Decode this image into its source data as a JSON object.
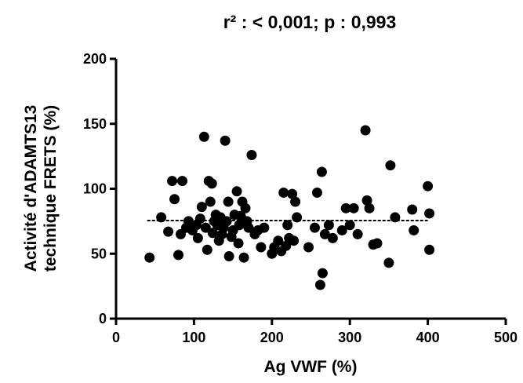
{
  "chart_data": {
    "type": "scatter",
    "title": "r² : < 0,001; p : 0,993",
    "xlabel": "Ag VWF (%)",
    "ylabel": [
      "Activité d'ADAMTS13",
      "technique FRETS (%)"
    ],
    "xlim": [
      0,
      500
    ],
    "ylim": [
      0,
      200
    ],
    "x_ticks": [
      "0",
      "100",
      "200",
      "300",
      "400",
      "500"
    ],
    "y_ticks": [
      "0",
      "50",
      "100",
      "150",
      "200"
    ],
    "grid": false,
    "regression_line": {
      "x": [
        40,
        400
      ],
      "y": [
        75.5,
        75.5
      ],
      "style": "dashed"
    },
    "points": [
      {
        "x": 43,
        "y": 47
      },
      {
        "x": 58,
        "y": 78
      },
      {
        "x": 67,
        "y": 67
      },
      {
        "x": 72,
        "y": 106
      },
      {
        "x": 75,
        "y": 92
      },
      {
        "x": 80,
        "y": 49
      },
      {
        "x": 83,
        "y": 65
      },
      {
        "x": 85,
        "y": 106
      },
      {
        "x": 90,
        "y": 70
      },
      {
        "x": 93,
        "y": 75
      },
      {
        "x": 98,
        "y": 68
      },
      {
        "x": 103,
        "y": 72
      },
      {
        "x": 105,
        "y": 62
      },
      {
        "x": 108,
        "y": 77
      },
      {
        "x": 110,
        "y": 86
      },
      {
        "x": 113,
        "y": 140
      },
      {
        "x": 115,
        "y": 70
      },
      {
        "x": 117,
        "y": 53
      },
      {
        "x": 119,
        "y": 106
      },
      {
        "x": 121,
        "y": 90
      },
      {
        "x": 123,
        "y": 104
      },
      {
        "x": 124,
        "y": 66
      },
      {
        "x": 126,
        "y": 75
      },
      {
        "x": 128,
        "y": 80
      },
      {
        "x": 130,
        "y": 72
      },
      {
        "x": 132,
        "y": 60
      },
      {
        "x": 134,
        "y": 78
      },
      {
        "x": 136,
        "y": 65
      },
      {
        "x": 138,
        "y": 70
      },
      {
        "x": 140,
        "y": 137
      },
      {
        "x": 142,
        "y": 75
      },
      {
        "x": 144,
        "y": 90
      },
      {
        "x": 145,
        "y": 48
      },
      {
        "x": 148,
        "y": 63
      },
      {
        "x": 150,
        "y": 68
      },
      {
        "x": 152,
        "y": 80
      },
      {
        "x": 155,
        "y": 98
      },
      {
        "x": 157,
        "y": 58
      },
      {
        "x": 158,
        "y": 72
      },
      {
        "x": 160,
        "y": 79
      },
      {
        "x": 162,
        "y": 90
      },
      {
        "x": 164,
        "y": 47
      },
      {
        "x": 166,
        "y": 85
      },
      {
        "x": 168,
        "y": 75
      },
      {
        "x": 170,
        "y": 70
      },
      {
        "x": 174,
        "y": 126
      },
      {
        "x": 178,
        "y": 65
      },
      {
        "x": 182,
        "y": 68
      },
      {
        "x": 186,
        "y": 55
      },
      {
        "x": 190,
        "y": 70
      },
      {
        "x": 200,
        "y": 50
      },
      {
        "x": 203,
        "y": 55
      },
      {
        "x": 208,
        "y": 60
      },
      {
        "x": 212,
        "y": 52
      },
      {
        "x": 215,
        "y": 97
      },
      {
        "x": 218,
        "y": 56
      },
      {
        "x": 220,
        "y": 72
      },
      {
        "x": 222,
        "y": 62
      },
      {
        "x": 226,
        "y": 96
      },
      {
        "x": 228,
        "y": 60
      },
      {
        "x": 230,
        "y": 90
      },
      {
        "x": 232,
        "y": 78
      },
      {
        "x": 247,
        "y": 55
      },
      {
        "x": 255,
        "y": 70
      },
      {
        "x": 258,
        "y": 97
      },
      {
        "x": 262,
        "y": 26
      },
      {
        "x": 264,
        "y": 113
      },
      {
        "x": 265,
        "y": 35
      },
      {
        "x": 268,
        "y": 65
      },
      {
        "x": 273,
        "y": 72
      },
      {
        "x": 278,
        "y": 62
      },
      {
        "x": 290,
        "y": 68
      },
      {
        "x": 295,
        "y": 85
      },
      {
        "x": 300,
        "y": 72
      },
      {
        "x": 305,
        "y": 85
      },
      {
        "x": 310,
        "y": 65
      },
      {
        "x": 320,
        "y": 145
      },
      {
        "x": 322,
        "y": 91
      },
      {
        "x": 325,
        "y": 85
      },
      {
        "x": 330,
        "y": 57
      },
      {
        "x": 335,
        "y": 58
      },
      {
        "x": 350,
        "y": 43
      },
      {
        "x": 352,
        "y": 118
      },
      {
        "x": 358,
        "y": 78
      },
      {
        "x": 380,
        "y": 84
      },
      {
        "x": 382,
        "y": 68
      },
      {
        "x": 400,
        "y": 102
      },
      {
        "x": 402,
        "y": 81
      },
      {
        "x": 402,
        "y": 53
      }
    ]
  }
}
